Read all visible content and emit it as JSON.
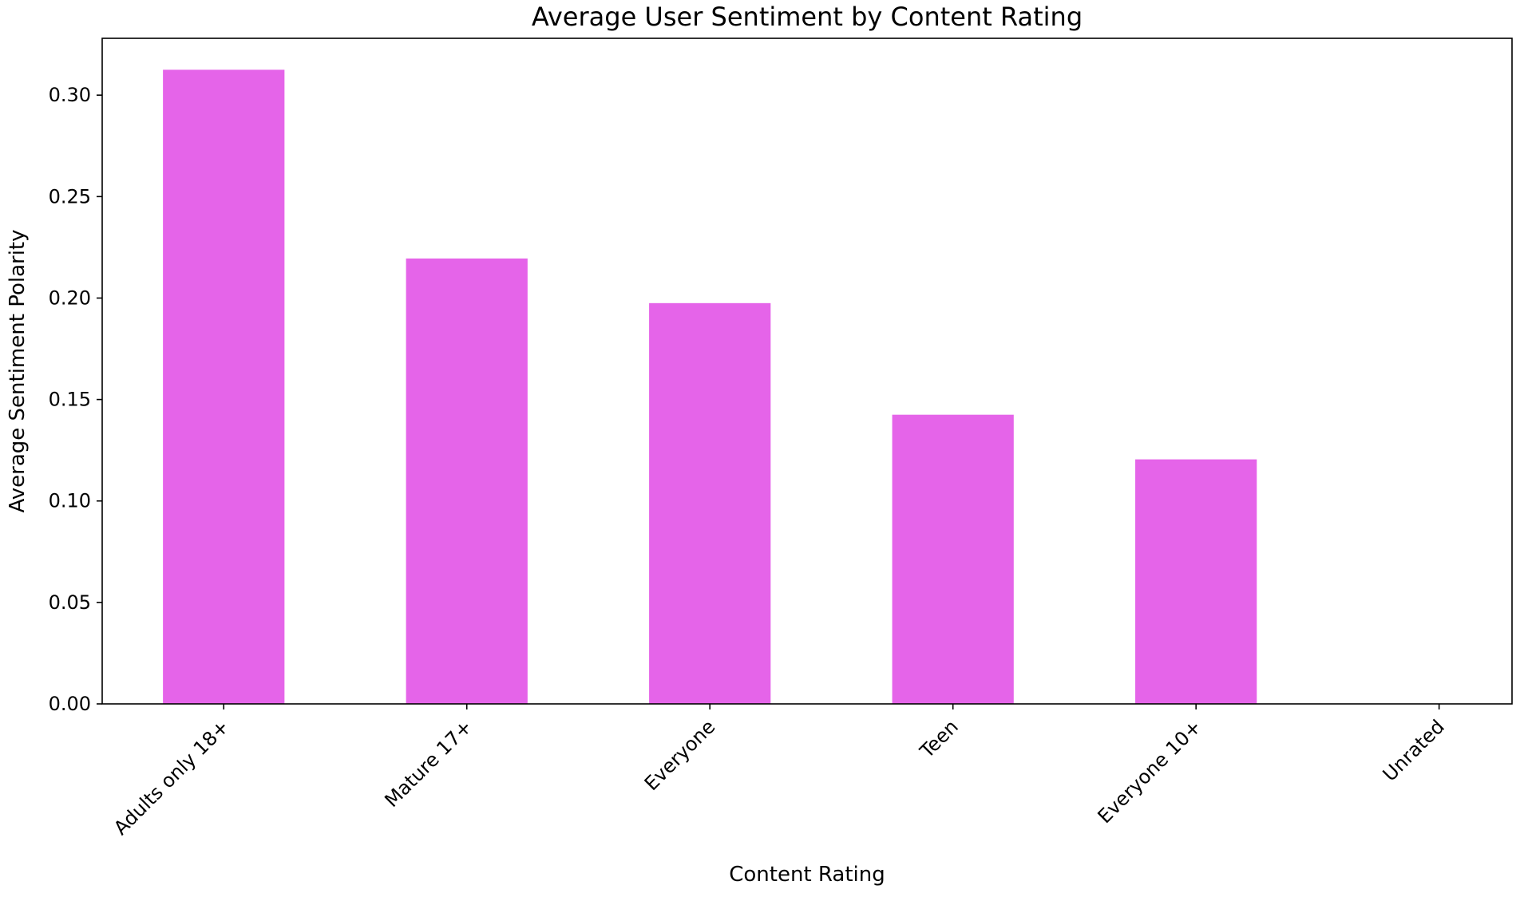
{
  "chart_data": {
    "type": "bar",
    "title": "Average User Sentiment by Content Rating",
    "xlabel": "Content Rating",
    "ylabel": "Average Sentiment Polarity",
    "categories": [
      "Adults only 18+",
      "Mature 17+",
      "Everyone",
      "Teen",
      "Everyone 10+",
      "Unrated"
    ],
    "values": [
      0.3125,
      0.2195,
      0.1975,
      0.1425,
      0.1205,
      0.0
    ],
    "ylim": [
      0,
      0.328
    ],
    "yticks": [
      0.0,
      0.05,
      0.1,
      0.15,
      0.2,
      0.25,
      0.3
    ],
    "ytick_labels": [
      "0.00",
      "0.05",
      "0.10",
      "0.15",
      "0.20",
      "0.25",
      "0.30"
    ],
    "bar_color": "#e564e9",
    "grid": false,
    "legend": "none",
    "x_tick_rotation_deg": 45
  }
}
